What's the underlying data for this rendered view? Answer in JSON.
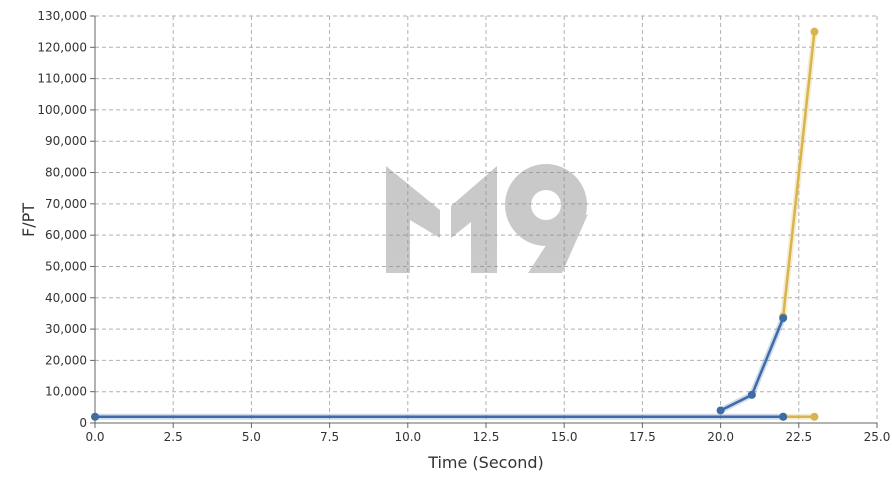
{
  "chart_data": {
    "type": "line",
    "xlabel": "Time (Second)",
    "ylabel": "F/PT",
    "xlim": [
      0,
      25
    ],
    "ylim": [
      0,
      130000
    ],
    "x_ticks": [
      "0.0",
      "2.5",
      "5.0",
      "7.5",
      "10.0",
      "12.5",
      "15.0",
      "17.5",
      "20.0",
      "22.5",
      "25.0"
    ],
    "y_ticks": [
      "0",
      "10,000",
      "20,000",
      "30,000",
      "40,000",
      "50,000",
      "60,000",
      "70,000",
      "80,000",
      "90,000",
      "100,000",
      "110,000",
      "120,000",
      "130,000"
    ],
    "grid": true,
    "grid_style": "dashed",
    "watermark": "M19",
    "series": [
      {
        "color": "#d9b44a",
        "points": [
          [
            22,
            2000
          ],
          [
            23,
            2000
          ],
          [
            22,
            34000
          ],
          [
            23,
            125000
          ]
        ],
        "segments": [
          [
            [
              22,
              2000
            ],
            [
              23,
              2000
            ]
          ],
          [
            [
              22,
              34000
            ],
            [
              23,
              125000
            ]
          ]
        ]
      },
      {
        "color": "#3d6ba8",
        "points": [
          [
            0,
            2000
          ],
          [
            22,
            2000
          ],
          [
            20,
            4000
          ],
          [
            21,
            9000
          ],
          [
            22,
            33500
          ]
        ],
        "segments": [
          [
            [
              0,
              2000
            ],
            [
              22,
              2000
            ]
          ],
          [
            [
              20,
              4000
            ],
            [
              21,
              9000
            ],
            [
              22,
              33500
            ]
          ]
        ]
      }
    ]
  }
}
